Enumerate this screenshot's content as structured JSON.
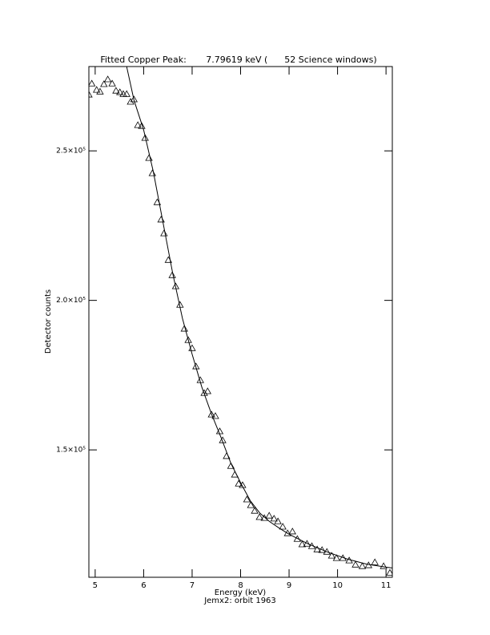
{
  "chart_data": {
    "type": "scatter",
    "title": "Fitted Copper Peak:       7.79619 keV (      52 Science windows)",
    "subtitle": "Jemx2: orbit 1963",
    "x_label": "Energy (keV)",
    "y_label": "Detector counts",
    "xlim": [
      4.87,
      11.13
    ],
    "ylim": [
      107400,
      278200
    ],
    "xticks": [
      5,
      6,
      7,
      8,
      9,
      10,
      11
    ],
    "yticks": [
      {
        "value": 150000,
        "label": "1.5×10⁵"
      },
      {
        "value": 200000,
        "label": "2.0×10⁵"
      },
      {
        "value": 250000,
        "label": "2.5×10⁵"
      }
    ],
    "color": "#000000",
    "series": [
      {
        "mode": "markers",
        "marker": "triangle",
        "x": [
          4.87,
          4.93,
          5.03,
          5.1,
          5.18,
          5.26,
          5.35,
          5.43,
          5.51,
          5.58,
          5.65,
          5.73,
          5.8,
          5.88,
          5.96,
          6.03,
          6.11,
          6.18,
          6.28,
          6.36,
          6.42,
          6.51,
          6.59,
          6.66,
          6.75,
          6.84,
          6.92,
          7.0,
          7.08,
          7.17,
          7.25,
          7.32,
          7.4,
          7.48,
          7.57,
          7.63,
          7.71,
          7.8,
          7.88,
          7.96,
          8.04,
          8.13,
          8.21,
          8.29,
          8.39,
          8.49,
          8.59,
          8.69,
          8.77,
          8.87,
          8.97,
          9.07,
          9.17,
          9.27,
          9.37,
          9.47,
          9.58,
          9.68,
          9.78,
          9.88,
          9.98,
          10.11,
          10.24,
          10.37,
          10.51,
          10.64,
          10.77,
          10.95,
          11.08
        ],
        "values": [
          268800,
          272500,
          270400,
          269800,
          272300,
          273900,
          272500,
          270100,
          269600,
          269000,
          269000,
          266400,
          267200,
          258600,
          258300,
          254300,
          247600,
          242500,
          232800,
          227000,
          222400,
          213500,
          208400,
          204700,
          198500,
          190500,
          186700,
          184000,
          177900,
          173300,
          169000,
          169600,
          161800,
          161300,
          156200,
          153200,
          147900,
          144600,
          141700,
          138700,
          138200,
          133400,
          131500,
          129600,
          127500,
          127200,
          128000,
          127000,
          126100,
          124300,
          122100,
          122700,
          120200,
          118400,
          118600,
          117800,
          116700,
          116500,
          115900,
          114600,
          113800,
          113800,
          113000,
          111600,
          111100,
          111400,
          112400,
          111100,
          108900
        ]
      },
      {
        "mode": "line",
        "x": [
          5.65,
          5.8,
          6.0,
          6.2,
          6.4,
          6.6,
          6.8,
          7.0,
          7.2,
          7.4,
          7.6,
          7.8,
          8.0,
          8.2,
          8.4,
          8.6,
          8.8,
          9.0,
          9.4,
          9.8,
          10.2,
          10.6,
          11.0,
          11.13
        ],
        "values": [
          278150,
          267000,
          257000,
          243000,
          226000,
          209000,
          194000,
          182000,
          171000,
          162000,
          154000,
          145500,
          139000,
          133000,
          128800,
          126000,
          123800,
          121800,
          118500,
          115800,
          113500,
          111800,
          110800,
          110500
        ]
      }
    ]
  }
}
